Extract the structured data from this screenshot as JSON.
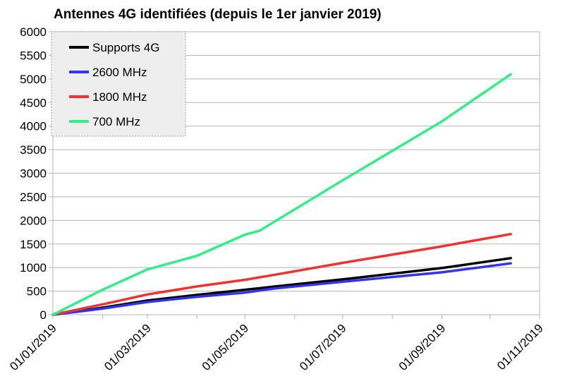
{
  "chart_data": {
    "type": "line",
    "title": "Antennes 4G identifiées (depuis le 1er janvier 2019)",
    "xlabel": "",
    "ylabel": "",
    "ylim": [
      0,
      6000
    ],
    "yticks": [
      "0",
      "500",
      "1000",
      "1500",
      "2000",
      "2500",
      "3000",
      "3500",
      "4000",
      "4500",
      "5000",
      "5500",
      "6000"
    ],
    "xlim": [
      "2019-01-01",
      "2019-11-01"
    ],
    "xticks": [
      "01/01/2019",
      "01/03/2019",
      "01/05/2019",
      "01/07/2019",
      "01/09/2019",
      "01/11/2019"
    ],
    "grid": "horizontal",
    "legend_position": "top-left",
    "series": [
      {
        "name": "Supports 4G",
        "color": "#000000",
        "points": [
          [
            "2019-01-01",
            0
          ],
          [
            "2019-02-01",
            150
          ],
          [
            "2019-03-01",
            300
          ],
          [
            "2019-04-01",
            420
          ],
          [
            "2019-05-01",
            530
          ],
          [
            "2019-05-20",
            600
          ],
          [
            "2019-07-01",
            750
          ],
          [
            "2019-09-01",
            990
          ],
          [
            "2019-10-14",
            1200
          ]
        ]
      },
      {
        "name": "2600 MHz",
        "color": "#3333ee",
        "points": [
          [
            "2019-01-01",
            0
          ],
          [
            "2019-02-01",
            130
          ],
          [
            "2019-03-01",
            270
          ],
          [
            "2019-04-01",
            380
          ],
          [
            "2019-05-01",
            470
          ],
          [
            "2019-05-20",
            560
          ],
          [
            "2019-07-01",
            700
          ],
          [
            "2019-09-01",
            900
          ],
          [
            "2019-10-14",
            1090
          ]
        ]
      },
      {
        "name": "1800 MHz",
        "color": "#ee3333",
        "points": [
          [
            "2019-01-01",
            0
          ],
          [
            "2019-02-01",
            220
          ],
          [
            "2019-03-01",
            430
          ],
          [
            "2019-04-01",
            600
          ],
          [
            "2019-05-01",
            740
          ],
          [
            "2019-05-20",
            850
          ],
          [
            "2019-07-01",
            1100
          ],
          [
            "2019-09-01",
            1450
          ],
          [
            "2019-10-14",
            1710
          ]
        ]
      },
      {
        "name": "700 MHz",
        "color": "#33ee88",
        "points": [
          [
            "2019-01-01",
            0
          ],
          [
            "2019-02-01",
            530
          ],
          [
            "2019-03-01",
            960
          ],
          [
            "2019-04-01",
            1250
          ],
          [
            "2019-05-01",
            1700
          ],
          [
            "2019-05-10",
            1780
          ],
          [
            "2019-07-01",
            2850
          ],
          [
            "2019-09-01",
            4100
          ],
          [
            "2019-10-14",
            5100
          ]
        ]
      }
    ]
  }
}
